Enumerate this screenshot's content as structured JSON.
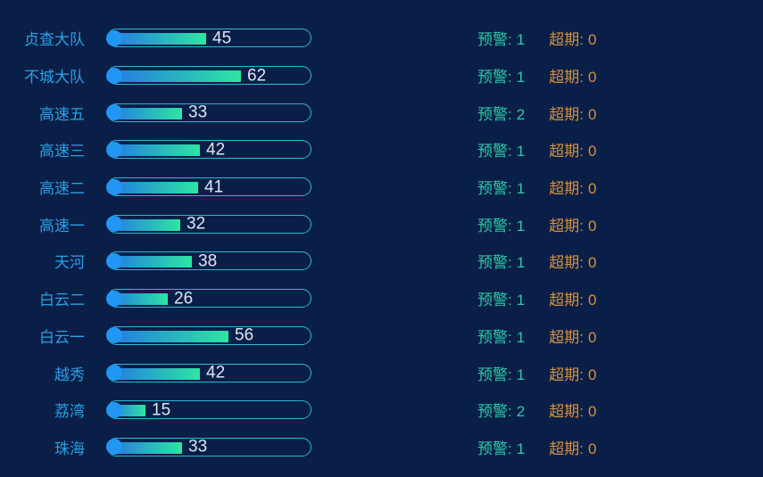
{
  "colors": {
    "bg": "#0a1f48",
    "label": "#2aa0e4",
    "track-border": "#2db8d4",
    "grad-a": "#2379e4",
    "grad-b": "#2ee5a2",
    "dot": "#2196f3",
    "value": "#dfe4f2",
    "warn": "#2cc9a6",
    "over": "#d4913c"
  },
  "strings": {
    "warning_prefix": "预警:",
    "overdue_prefix": "超期:"
  },
  "chart_data": {
    "type": "bar",
    "orientation": "horizontal",
    "title": "",
    "xlabel": "",
    "ylabel": "",
    "grid": false,
    "legend": false,
    "xlim": [
      0,
      100
    ],
    "categories": [
      "贞查大队",
      "不城大队",
      "高速五",
      "高速三",
      "高速二",
      "高速一",
      "天河",
      "白云二",
      "白云一",
      "越秀",
      "荔湾",
      "珠海"
    ],
    "series": [
      {
        "name": "value",
        "values": [
          45,
          62,
          33,
          42,
          41,
          32,
          38,
          26,
          56,
          42,
          15,
          33
        ]
      },
      {
        "name": "预警",
        "values": [
          1,
          1,
          2,
          1,
          1,
          1,
          1,
          1,
          1,
          1,
          2,
          1
        ]
      },
      {
        "name": "超期",
        "values": [
          0,
          0,
          0,
          0,
          0,
          0,
          0,
          0,
          0,
          0,
          0,
          0
        ]
      }
    ]
  }
}
